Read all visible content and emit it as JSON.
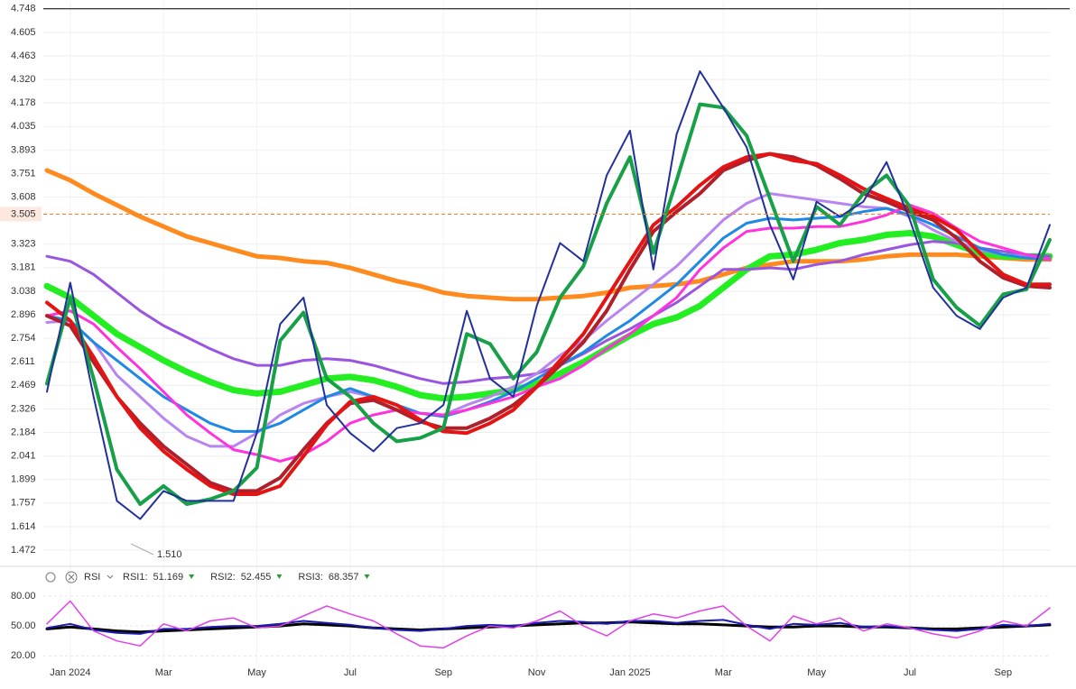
{
  "chart_data": [
    {
      "type": "line",
      "ylim": [
        1.39,
        4.79
      ],
      "yticks": [
        1.472,
        1.614,
        1.757,
        1.899,
        2.041,
        2.184,
        2.326,
        2.469,
        2.611,
        2.754,
        2.896,
        3.038,
        3.181,
        3.323,
        3.608,
        3.751,
        3.893,
        4.035,
        4.178,
        {
          "value": 4.32,
          "label": "4.320"
        },
        4.463,
        4.605,
        4.748
      ],
      "grid": true,
      "last_price": 3.505,
      "annotations": [
        {
          "value": 1.51,
          "label": "1.510"
        }
      ],
      "series": [
        {
          "color": "#ff8a1e",
          "line_width": 5,
          "values": [
            3.77,
            3.71,
            3.63,
            3.56,
            3.49,
            3.43,
            3.37,
            3.33,
            3.29,
            3.25,
            3.24,
            3.22,
            3.21,
            3.18,
            3.14,
            3.1,
            3.07,
            3.03,
            3.01,
            3.0,
            2.99,
            2.99,
            3.0,
            3.01,
            3.03,
            3.06,
            3.07,
            3.08,
            3.1,
            3.14,
            3.18,
            3.2,
            3.22,
            3.22,
            3.22,
            3.23,
            3.25,
            3.26,
            3.26,
            3.26,
            3.25,
            3.24,
            3.23,
            3.23
          ]
        },
        {
          "color": "#22ee22",
          "line_width": 7,
          "values": [
            3.07,
            3.0,
            2.89,
            2.78,
            2.7,
            2.62,
            2.55,
            2.49,
            2.44,
            2.42,
            2.43,
            2.47,
            2.51,
            2.52,
            2.5,
            2.46,
            2.41,
            2.39,
            2.4,
            2.42,
            2.44,
            2.48,
            2.54,
            2.61,
            2.69,
            2.77,
            2.84,
            2.88,
            2.95,
            3.06,
            3.17,
            3.25,
            3.26,
            3.29,
            3.33,
            3.35,
            3.38,
            3.39,
            3.37,
            3.32,
            3.27,
            3.25,
            3.25,
            3.25
          ]
        },
        {
          "color": "#9a55e0",
          "line_width": 3,
          "values": [
            3.25,
            3.22,
            3.14,
            3.03,
            2.92,
            2.83,
            2.76,
            2.69,
            2.63,
            2.59,
            2.59,
            2.62,
            2.63,
            2.62,
            2.59,
            2.55,
            2.51,
            2.48,
            2.49,
            2.51,
            2.52,
            2.54,
            2.59,
            2.66,
            2.74,
            2.81,
            2.89,
            2.97,
            3.07,
            3.17,
            3.17,
            3.18,
            3.17,
            3.2,
            3.22,
            3.26,
            3.29,
            3.32,
            3.34,
            3.33,
            3.3,
            3.28,
            3.26,
            3.25
          ]
        },
        {
          "color": "#b884f0",
          "line_width": 3,
          "values": [
            2.85,
            2.86,
            2.73,
            2.53,
            2.4,
            2.27,
            2.16,
            2.1,
            2.1,
            2.18,
            2.29,
            2.36,
            2.4,
            2.43,
            2.4,
            2.35,
            2.3,
            2.29,
            2.35,
            2.4,
            2.46,
            2.54,
            2.65,
            2.74,
            2.86,
            2.97,
            3.08,
            3.19,
            3.33,
            3.47,
            3.57,
            3.63,
            3.61,
            3.59,
            3.57,
            3.55,
            3.54,
            3.49,
            3.41,
            3.34,
            3.29,
            3.26,
            3.25,
            3.23
          ]
        },
        {
          "color": "#1e88e5",
          "line_width": 3,
          "values": [
            2.89,
            2.86,
            2.73,
            2.62,
            2.51,
            2.4,
            2.32,
            2.24,
            2.19,
            2.19,
            2.24,
            2.32,
            2.4,
            2.45,
            2.4,
            2.35,
            2.3,
            2.28,
            2.32,
            2.37,
            2.43,
            2.51,
            2.59,
            2.67,
            2.77,
            2.86,
            2.97,
            3.08,
            3.22,
            3.36,
            3.45,
            3.48,
            3.47,
            3.48,
            3.49,
            3.52,
            3.54,
            3.5,
            3.44,
            3.37,
            3.3,
            3.26,
            3.24,
            3.23
          ]
        },
        {
          "color": "#ff33dd",
          "line_width": 3,
          "values": [
            2.89,
            2.92,
            2.84,
            2.7,
            2.57,
            2.43,
            2.29,
            2.18,
            2.08,
            2.05,
            2.01,
            2.05,
            2.13,
            2.24,
            2.29,
            2.32,
            2.3,
            2.29,
            2.32,
            2.36,
            2.4,
            2.46,
            2.51,
            2.59,
            2.69,
            2.78,
            2.89,
            3.0,
            3.17,
            3.3,
            3.4,
            3.42,
            3.42,
            3.43,
            3.43,
            3.46,
            3.5,
            3.56,
            3.51,
            3.42,
            3.34,
            3.3,
            3.26,
            3.23
          ]
        },
        {
          "color": "#b0202a",
          "line_width": 4,
          "values": [
            2.89,
            2.83,
            2.61,
            2.4,
            2.24,
            2.1,
            1.99,
            1.88,
            1.83,
            1.83,
            1.91,
            2.08,
            2.24,
            2.36,
            2.38,
            2.32,
            2.25,
            2.21,
            2.21,
            2.27,
            2.35,
            2.46,
            2.59,
            2.73,
            2.92,
            3.17,
            3.4,
            3.52,
            3.63,
            3.77,
            3.83,
            3.87,
            3.85,
            3.8,
            3.72,
            3.63,
            3.58,
            3.52,
            3.47,
            3.36,
            3.22,
            3.12,
            3.07,
            3.06
          ]
        },
        {
          "color": "#e41414",
          "line_width": 4,
          "values": [
            2.97,
            2.86,
            2.64,
            2.4,
            2.21,
            2.07,
            1.96,
            1.86,
            1.81,
            1.81,
            1.86,
            2.04,
            2.23,
            2.37,
            2.4,
            2.35,
            2.26,
            2.19,
            2.18,
            2.24,
            2.32,
            2.46,
            2.62,
            2.78,
            3.0,
            3.22,
            3.44,
            3.55,
            3.68,
            3.79,
            3.85,
            3.87,
            3.83,
            3.81,
            3.74,
            3.66,
            3.6,
            3.54,
            3.49,
            3.41,
            3.27,
            3.14,
            3.08,
            3.08
          ]
        },
        {
          "color": "#18a048",
          "line_width": 4,
          "values": [
            2.48,
            3.0,
            2.51,
            1.96,
            1.75,
            1.86,
            1.75,
            1.78,
            1.83,
            1.97,
            2.74,
            2.91,
            2.51,
            2.4,
            2.24,
            2.13,
            2.15,
            2.21,
            2.78,
            2.72,
            2.51,
            2.67,
            3.0,
            3.19,
            3.57,
            3.85,
            3.27,
            3.71,
            4.17,
            4.15,
            3.98,
            3.6,
            3.22,
            3.55,
            3.44,
            3.63,
            3.74,
            3.55,
            3.11,
            2.94,
            2.83,
            3.02,
            3.05,
            3.35
          ]
        },
        {
          "color": "#22309c",
          "line_width": 2,
          "values": [
            2.43,
            3.09,
            2.4,
            1.77,
            1.66,
            1.83,
            1.77,
            1.77,
            1.77,
            2.18,
            2.84,
            3.0,
            2.35,
            2.18,
            2.07,
            2.21,
            2.24,
            2.35,
            2.92,
            2.51,
            2.4,
            2.95,
            3.33,
            3.22,
            3.74,
            4.01,
            3.17,
            3.99,
            4.37,
            4.15,
            3.91,
            3.44,
            3.11,
            3.58,
            3.49,
            3.58,
            3.82,
            3.47,
            3.06,
            2.89,
            2.81,
            3.0,
            3.06,
            3.44
          ]
        }
      ]
    },
    {
      "type": "line",
      "title": "RSI",
      "categories": [
        null,
        "Jan 2024",
        null,
        null,
        null,
        "Mar",
        null,
        null,
        null,
        "May",
        null,
        null,
        null,
        "Jul",
        null,
        null,
        null,
        "Sep",
        null,
        null,
        null,
        "Nov",
        null,
        null,
        null,
        "Jan 2025",
        null,
        null,
        null,
        "Mar",
        null,
        null,
        null,
        "May",
        null,
        null,
        null,
        "Jul",
        null,
        null,
        null,
        "Sep",
        null,
        null
      ],
      "ylim": [
        13,
        88
      ],
      "yticks": [
        {
          "value": 20,
          "label": "20.00"
        },
        {
          "value": 50,
          "label": "50.00"
        },
        {
          "value": 80,
          "label": "80.00"
        }
      ],
      "grid": true,
      "series": [
        {
          "name": "RSI1:",
          "last_value": 51.169,
          "color": "#000000",
          "line_width": 3,
          "values": [
            47,
            49,
            47,
            45,
            44,
            45,
            46,
            47,
            48,
            49,
            50,
            52,
            51,
            50,
            48,
            47,
            46,
            47,
            48,
            49,
            50,
            51,
            52,
            53,
            53,
            54,
            53,
            52,
            52,
            51,
            50,
            49,
            49,
            50,
            50,
            49,
            49,
            48,
            47,
            47,
            48,
            49,
            50,
            51
          ]
        },
        {
          "name": "RSI2:",
          "last_value": 52.455,
          "color": "#1b1bb0",
          "line_width": 2,
          "values": [
            48,
            52,
            46,
            43,
            42,
            47,
            47,
            49,
            50,
            50,
            52,
            55,
            53,
            51,
            48,
            46,
            45,
            47,
            50,
            51,
            50,
            53,
            55,
            54,
            52,
            55,
            55,
            53,
            55,
            56,
            51,
            47,
            52,
            51,
            53,
            49,
            50,
            48,
            46,
            45,
            47,
            51,
            50,
            52
          ]
        },
        {
          "name": "RSI3:",
          "last_value": 68.357,
          "color": "#e040e8",
          "line_width": 1.5,
          "values": [
            52,
            75,
            45,
            35,
            30,
            52,
            45,
            55,
            58,
            48,
            50,
            60,
            70,
            62,
            55,
            42,
            30,
            28,
            40,
            50,
            48,
            55,
            65,
            50,
            40,
            55,
            62,
            58,
            65,
            70,
            50,
            35,
            60,
            52,
            58,
            45,
            52,
            48,
            42,
            38,
            45,
            55,
            50,
            68
          ]
        }
      ]
    }
  ]
}
